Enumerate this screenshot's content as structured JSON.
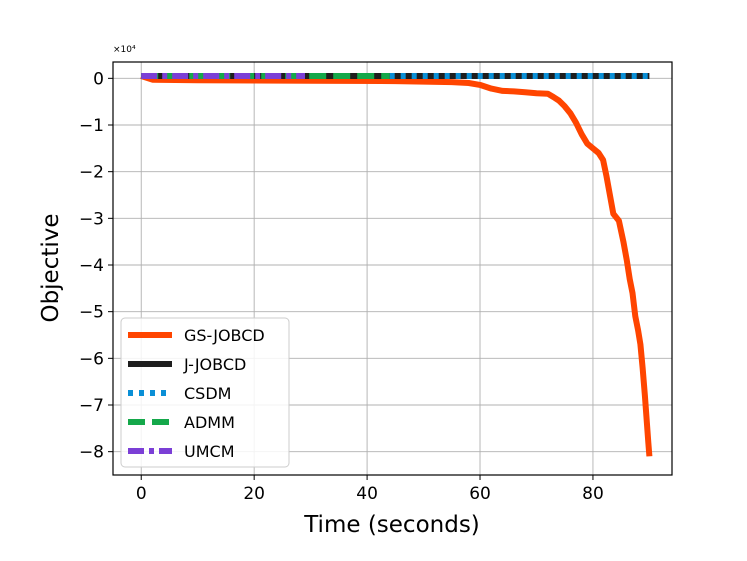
{
  "chart_data": {
    "type": "line",
    "title": "",
    "xlabel": "Time (seconds)",
    "ylabel": "Objective",
    "y_scale_label": "×10⁴",
    "xlim": [
      -5,
      94
    ],
    "ylim": [
      -8.5,
      0.35
    ],
    "x_ticks": [
      0,
      20,
      40,
      60,
      80
    ],
    "x_tick_labels": [
      "0",
      "20",
      "40",
      "60",
      "80"
    ],
    "y_ticks": [
      0,
      -1,
      -2,
      -3,
      -4,
      -5,
      -6,
      -7,
      -8
    ],
    "y_tick_labels": [
      "0",
      "−1",
      "−2",
      "−3",
      "−4",
      "−5",
      "−6",
      "−7",
      "−8"
    ],
    "grid": true,
    "legend_position": "lower-left",
    "series": [
      {
        "name": "GS-JOBCD",
        "color": "#ff4500",
        "style": "solid",
        "points": [
          [
            0,
            0.05
          ],
          [
            2,
            -0.03
          ],
          [
            10,
            -0.04
          ],
          [
            30,
            -0.05
          ],
          [
            45,
            -0.06
          ],
          [
            50,
            -0.07
          ],
          [
            55,
            -0.08
          ],
          [
            58,
            -0.1
          ],
          [
            60,
            -0.14
          ],
          [
            62,
            -0.22
          ],
          [
            64,
            -0.27
          ],
          [
            66,
            -0.28
          ],
          [
            68,
            -0.3
          ],
          [
            70,
            -0.32
          ],
          [
            72,
            -0.33
          ],
          [
            73,
            -0.4
          ],
          [
            74,
            -0.48
          ],
          [
            75,
            -0.6
          ],
          [
            76,
            -0.75
          ],
          [
            77,
            -0.95
          ],
          [
            78,
            -1.2
          ],
          [
            79,
            -1.4
          ],
          [
            80,
            -1.5
          ],
          [
            81,
            -1.6
          ],
          [
            81.8,
            -1.75
          ],
          [
            82.4,
            -2.1
          ],
          [
            83,
            -2.5
          ],
          [
            83.6,
            -2.9
          ],
          [
            84.6,
            -3.05
          ],
          [
            85.4,
            -3.5
          ],
          [
            86,
            -3.9
          ],
          [
            86.5,
            -4.3
          ],
          [
            87,
            -4.6
          ],
          [
            87.5,
            -5.1
          ],
          [
            88,
            -5.4
          ],
          [
            88.4,
            -5.7
          ],
          [
            88.8,
            -6.2
          ],
          [
            89.2,
            -6.8
          ],
          [
            89.5,
            -7.3
          ],
          [
            89.8,
            -7.8
          ],
          [
            90,
            -8.1
          ]
        ]
      },
      {
        "name": "J-JOBCD",
        "color": "#1e1e1e",
        "style": "solid",
        "points": [
          [
            0,
            0.05
          ],
          [
            90,
            0.05
          ]
        ]
      },
      {
        "name": "CSDM",
        "color": "#0a8fd6",
        "style": "dotted",
        "points": [
          [
            44,
            0.05
          ],
          [
            90,
            0.05
          ]
        ]
      },
      {
        "name": "ADMM",
        "color": "#14a84a",
        "style": "dashed",
        "points": [
          [
            0,
            0.05
          ],
          [
            44,
            0.05
          ]
        ]
      },
      {
        "name": "UMCM",
        "color": "#7b3fd6",
        "style": "dashdot",
        "points": [
          [
            0,
            0.05
          ],
          [
            29,
            0.05
          ]
        ]
      }
    ]
  }
}
